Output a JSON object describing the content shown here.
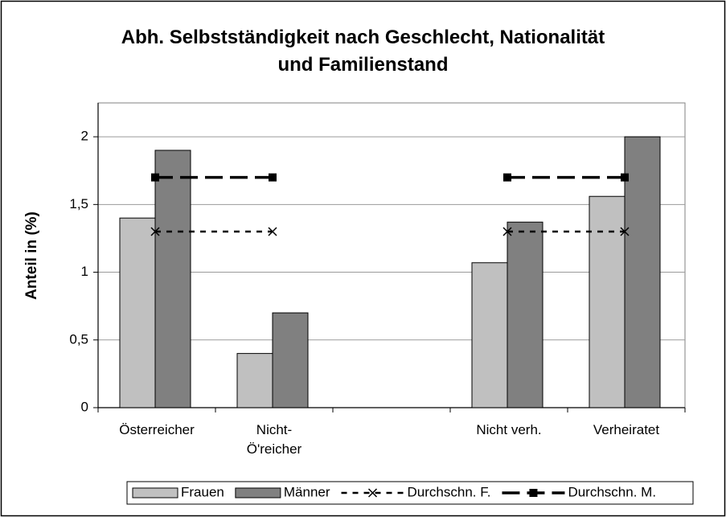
{
  "chart_data": {
    "type": "bar",
    "title": "Abh. Selbstständigkeit nach Geschlecht,  Nationalität\nund Familienstand",
    "y_label": "Anteil in (%)",
    "categories": [
      "Österreicher",
      "Nicht-\nÖ'reicher",
      null,
      "Nicht verh.",
      "Verheiratet"
    ],
    "series": [
      {
        "name": "Frauen",
        "type": "bar",
        "color": "#c0c0c0",
        "values": [
          1.4,
          0.4,
          null,
          1.07,
          1.56
        ]
      },
      {
        "name": "Männer",
        "type": "bar",
        "color": "#808080",
        "values": [
          1.9,
          0.7,
          null,
          1.37,
          2.0
        ]
      },
      {
        "name": "Durchschn. F.",
        "type": "line",
        "color": "#000000",
        "marker": "x",
        "dash": "dotted",
        "values": [
          1.3,
          1.3,
          null,
          1.3,
          1.3
        ]
      },
      {
        "name": "Durchschn. M.",
        "type": "line",
        "color": "#000000",
        "marker": "square",
        "dash": "dashed",
        "values": [
          1.7,
          1.7,
          null,
          1.7,
          1.7
        ]
      }
    ],
    "ylim": [
      0,
      2.25
    ],
    "yticks": [
      0,
      {
        "value": 0.5,
        "label": "0,5"
      },
      1,
      {
        "value": 1.5,
        "label": "1,5"
      },
      2
    ],
    "grid": true,
    "legend": "bottom"
  }
}
